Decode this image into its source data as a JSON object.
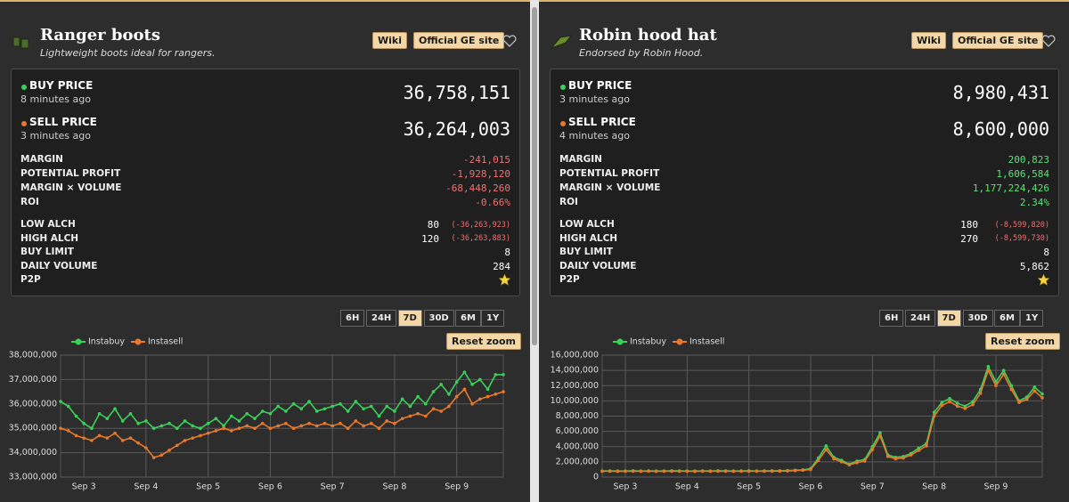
{
  "panels": [
    {
      "title": "Ranger boots",
      "subtitle": "Lightweight boots ideal for rangers.",
      "links": [
        "Wiki",
        "Official GE site"
      ],
      "buy": {
        "label": "BUY PRICE",
        "time": "8 minutes ago",
        "value": "36,758,151"
      },
      "sell": {
        "label": "SELL PRICE",
        "time": "3 minutes ago",
        "value": "36,264,003"
      },
      "margin_rows": [
        {
          "label": "MARGIN",
          "value": "-241,015"
        },
        {
          "label": "POTENTIAL PROFIT",
          "value": "-1,928,120"
        },
        {
          "label": "MARGIN × VOLUME",
          "value": "-68,448,260"
        },
        {
          "label": "ROI",
          "value": "-0.66%"
        }
      ],
      "info_rows": [
        {
          "label": "LOW ALCH",
          "value": "80",
          "note": "(-36,263,923)"
        },
        {
          "label": "HIGH ALCH",
          "value": "120",
          "note": "(-36,263,883)"
        },
        {
          "label": "BUY LIMIT",
          "value": "8"
        },
        {
          "label": "DAILY VOLUME",
          "value": "284"
        },
        {
          "label": "P2P",
          "star": true
        }
      ],
      "ranges": [
        "6H",
        "24H",
        "7D",
        "30D",
        "6M",
        "1Y"
      ],
      "active_range": "7D",
      "reset": "Reset zoom",
      "chart_data": {
        "type": "line",
        "grid": true,
        "legend": "top-left",
        "categories": [
          null,
          null,
          null,
          "Sep 3",
          null,
          null,
          null,
          null,
          null,
          null,
          null,
          "Sep 4",
          null,
          null,
          null,
          null,
          null,
          null,
          null,
          "Sep 5",
          null,
          null,
          null,
          null,
          null,
          null,
          null,
          "Sep 6",
          null,
          null,
          null,
          null,
          null,
          null,
          null,
          "Sep 7",
          null,
          null,
          null,
          null,
          null,
          null,
          null,
          "Sep 8",
          null,
          null,
          null,
          null,
          null,
          null,
          null,
          "Sep 9",
          null,
          null,
          null,
          null,
          null,
          null
        ],
        "ylim": [
          33000000,
          38000000
        ],
        "yticks": [
          {
            "value": 33000000,
            "label": "33,000,000"
          },
          {
            "value": 34000000,
            "label": "34,000,000"
          },
          {
            "value": 35000000,
            "label": "35,000,000"
          },
          {
            "value": 36000000,
            "label": "36,000,000"
          },
          {
            "value": 37000000,
            "label": "37,000,000"
          },
          {
            "value": 38000000,
            "label": "38,000,000"
          }
        ],
        "series": [
          {
            "name": "Instabuy",
            "color": "#3ad15a",
            "values": [
              36100000,
              35900000,
              35500000,
              35200000,
              35000000,
              35600000,
              35400000,
              35800000,
              35300000,
              35600000,
              35200000,
              35300000,
              35000000,
              35100000,
              35200000,
              35000000,
              35300000,
              35100000,
              35000000,
              35200000,
              35400000,
              35100000,
              35500000,
              35300000,
              35600000,
              35400000,
              35700000,
              35600000,
              35900000,
              35700000,
              36000000,
              35800000,
              36100000,
              35700000,
              35800000,
              35900000,
              36000000,
              35700000,
              36100000,
              35800000,
              35900000,
              35500000,
              35900000,
              35700000,
              36200000,
              35900000,
              36300000,
              36000000,
              36500000,
              36800000,
              36400000,
              36900000,
              37300000,
              36800000,
              37000000,
              36600000,
              37200000,
              37200000
            ]
          },
          {
            "name": "Instasell",
            "color": "#e8792b",
            "values": [
              35000000,
              34900000,
              34700000,
              34600000,
              34500000,
              34700000,
              34600000,
              34800000,
              34500000,
              34600000,
              34400000,
              34200000,
              33800000,
              33900000,
              34100000,
              34300000,
              34500000,
              34600000,
              34700000,
              34800000,
              34900000,
              35000000,
              34900000,
              35000000,
              35100000,
              35000000,
              35200000,
              35000000,
              35100000,
              35200000,
              35000000,
              35100000,
              35200000,
              35100000,
              35200000,
              35100000,
              35200000,
              35000000,
              35300000,
              35100000,
              35200000,
              35000000,
              35300000,
              35200000,
              35400000,
              35500000,
              35600000,
              35500000,
              35800000,
              35700000,
              35900000,
              36300000,
              36600000,
              36000000,
              36200000,
              36300000,
              36400000,
              36500000
            ]
          }
        ]
      }
    },
    {
      "title": "Robin hood hat",
      "subtitle": "Endorsed by Robin Hood.",
      "links": [
        "Wiki",
        "Official GE site"
      ],
      "buy": {
        "label": "BUY PRICE",
        "time": "3 minutes ago",
        "value": "8,980,431"
      },
      "sell": {
        "label": "SELL PRICE",
        "time": "4 minutes ago",
        "value": "8,600,000"
      },
      "margin_rows": [
        {
          "label": "MARGIN",
          "value": "200,823"
        },
        {
          "label": "POTENTIAL PROFIT",
          "value": "1,606,584"
        },
        {
          "label": "MARGIN × VOLUME",
          "value": "1,177,224,426"
        },
        {
          "label": "ROI",
          "value": "2.34%"
        }
      ],
      "info_rows": [
        {
          "label": "LOW ALCH",
          "value": "180",
          "note": "(-8,599,820)"
        },
        {
          "label": "HIGH ALCH",
          "value": "270",
          "note": "(-8,599,730)"
        },
        {
          "label": "BUY LIMIT",
          "value": "8"
        },
        {
          "label": "DAILY VOLUME",
          "value": "5,862"
        },
        {
          "label": "P2P",
          "star": true
        }
      ],
      "ranges": [
        "6H",
        "24H",
        "7D",
        "30D",
        "6M",
        "1Y"
      ],
      "active_range": "7D",
      "reset": "Reset zoom",
      "chart_data": {
        "type": "line",
        "grid": true,
        "legend": "top-left",
        "categories": [
          null,
          null,
          null,
          "Sep 3",
          null,
          null,
          null,
          null,
          null,
          null,
          null,
          "Sep 4",
          null,
          null,
          null,
          null,
          null,
          null,
          null,
          "Sep 5",
          null,
          null,
          null,
          null,
          null,
          null,
          null,
          "Sep 6",
          null,
          null,
          null,
          null,
          null,
          null,
          null,
          "Sep 7",
          null,
          null,
          null,
          null,
          null,
          null,
          null,
          "Sep 8",
          null,
          null,
          null,
          null,
          null,
          null,
          null,
          "Sep 9",
          null,
          null,
          null,
          null,
          null,
          null
        ],
        "ylim": [
          0,
          16000000
        ],
        "yticks": [
          0,
          {
            "value": 2000000,
            "label": "2,000,000"
          },
          {
            "value": 4000000,
            "label": "4,000,000"
          },
          {
            "value": 6000000,
            "label": "6,000,000"
          },
          {
            "value": 8000000,
            "label": "8,000,000"
          },
          {
            "value": 10000000,
            "label": "10,000,000"
          },
          {
            "value": 12000000,
            "label": "12,000,000"
          },
          {
            "value": 14000000,
            "label": "14,000,000"
          },
          {
            "value": 16000000,
            "label": "16,000,000"
          }
        ],
        "series": [
          {
            "name": "Instabuy",
            "color": "#3ad15a",
            "values": [
              800000,
              810000,
              790000,
              800000,
              820000,
              800000,
              810000,
              790000,
              800000,
              820000,
              810000,
              800000,
              790000,
              810000,
              800000,
              820000,
              810000,
              800000,
              810000,
              820000,
              800000,
              810000,
              830000,
              820000,
              850000,
              900000,
              950000,
              1100000,
              2500000,
              4100000,
              2600000,
              2200000,
              1700000,
              2100000,
              2300000,
              4000000,
              5800000,
              2900000,
              2600000,
              2700000,
              3100000,
              3800000,
              4400000,
              8500000,
              9800000,
              10300000,
              9700000,
              9300000,
              9900000,
              11500000,
              14500000,
              12500000,
              14000000,
              12000000,
              10000000,
              10500000,
              11800000,
              10900000
            ]
          },
          {
            "name": "Instasell",
            "color": "#e8792b",
            "values": [
              760000,
              770000,
              750000,
              760000,
              770000,
              760000,
              770000,
              750000,
              760000,
              770000,
              760000,
              760000,
              750000,
              770000,
              760000,
              770000,
              760000,
              760000,
              770000,
              770000,
              760000,
              770000,
              780000,
              780000,
              800000,
              850000,
              900000,
              1000000,
              2200000,
              3600000,
              2400000,
              2000000,
              1600000,
              1900000,
              2100000,
              3600000,
              5400000,
              2700000,
              2400000,
              2500000,
              2900000,
              3500000,
              4100000,
              8000000,
              9400000,
              9900000,
              9300000,
              9000000,
              9500000,
              11000000,
              14000000,
              12000000,
              13500000,
              11500000,
              9800000,
              10200000,
              11300000,
              10400000
            ]
          }
        ]
      }
    }
  ]
}
